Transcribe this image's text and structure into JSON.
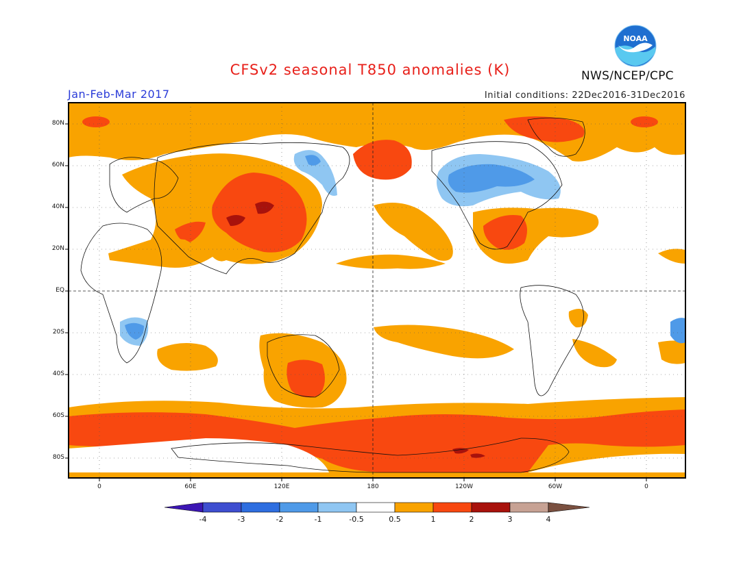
{
  "header": {
    "title": "CFSv2 seasonal T850 anomalies (K)",
    "season": "Jan-Feb-Mar 2017",
    "initial_conditions": "Initial conditions: 22Dec2016-31Dec2016",
    "agency": "NWS/NCEP/CPC",
    "logo_text": "NOAA"
  },
  "map": {
    "lat_labels": [
      "80N",
      "60N",
      "40N",
      "20N",
      "EQ",
      "20S",
      "40S",
      "60S",
      "80S"
    ],
    "lon_labels": [
      "0",
      "60E",
      "120E",
      "180",
      "120W",
      "60W",
      "0"
    ]
  },
  "colorbar": {
    "labels": [
      "-4",
      "-3",
      "-2",
      "-1",
      "-0.5",
      "0.5",
      "1",
      "2",
      "3",
      "4"
    ],
    "colors": [
      "#3c16b4",
      "#3e4ed0",
      "#2e6ee0",
      "#4f9ae8",
      "#8fc6f2",
      "#ffffff",
      "#f9a300",
      "#f84810",
      "#a8120c",
      "#c7a294",
      "#7a5040"
    ]
  },
  "colors": {
    "weak_warm": "#f9a300",
    "warm": "#f84810",
    "strong_warm": "#a8120c",
    "cold": "#4f9ae8",
    "weak_cold": "#8fc6f2"
  }
}
